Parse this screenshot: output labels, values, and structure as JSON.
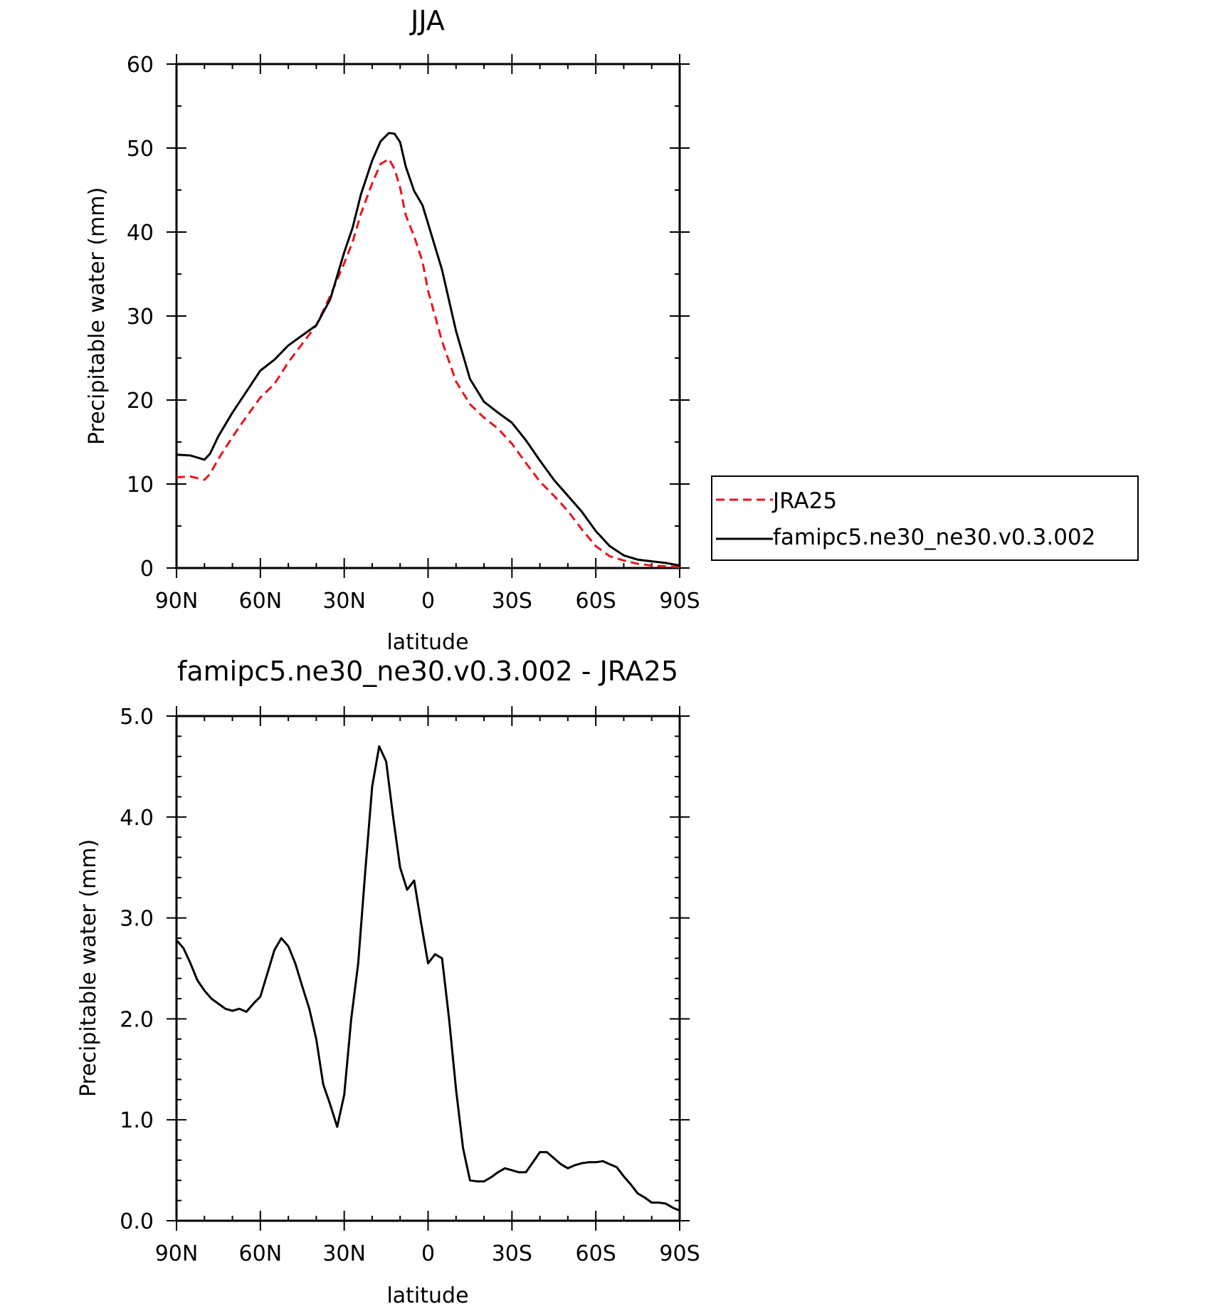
{
  "chart_data": [
    {
      "type": "line",
      "title": "JJA",
      "xlabel": "latitude",
      "ylabel": "Precipitable water (mm)",
      "xlim": [
        90,
        -90
      ],
      "ylim": [
        0,
        60
      ],
      "x_ticks": [
        90,
        60,
        30,
        0,
        -30,
        -60,
        -90
      ],
      "x_tick_labels": [
        "90N",
        "60N",
        "30N",
        "0",
        "30S",
        "60S",
        "90S"
      ],
      "y_ticks": [
        0,
        10,
        20,
        30,
        40,
        50,
        60
      ],
      "y_tick_labels": [
        "0",
        "10",
        "20",
        "30",
        "40",
        "50",
        "60"
      ],
      "legend": "right",
      "series": [
        {
          "name": "JRA25",
          "color": "#e8141c",
          "dash": "dashed",
          "x": [
            90,
            85,
            80,
            78,
            75,
            70,
            65,
            60,
            55,
            50,
            45,
            40,
            35,
            30,
            27,
            24,
            20,
            17,
            14,
            12,
            10,
            8,
            5,
            2,
            0,
            -5,
            -10,
            -15,
            -20,
            -25,
            -30,
            -35,
            -40,
            -45,
            -50,
            -55,
            -60,
            -65,
            -70,
            -75,
            -80,
            -85,
            -90
          ],
          "values": [
            10.8,
            10.9,
            10.5,
            11.2,
            13.0,
            15.6,
            18.0,
            20.3,
            21.9,
            24.5,
            26.7,
            28.9,
            32.4,
            36.3,
            38.8,
            42.2,
            45.8,
            48.1,
            48.7,
            47.5,
            45.3,
            42.0,
            39.5,
            36.5,
            33.0,
            27.0,
            22.2,
            19.5,
            17.9,
            16.6,
            14.8,
            12.5,
            10.3,
            8.6,
            6.8,
            4.6,
            2.6,
            1.4,
            0.9,
            0.5,
            0.3,
            0.2,
            0.1
          ]
        },
        {
          "name": "famipc5.ne30_ne30.v0.3.002",
          "color": "#000000",
          "dash": "solid",
          "x": [
            90,
            85,
            80,
            78,
            75,
            70,
            65,
            60,
            55,
            50,
            45,
            40,
            35,
            30,
            27,
            24,
            20,
            17,
            14,
            12,
            10,
            8,
            5,
            2,
            0,
            -5,
            -10,
            -15,
            -20,
            -25,
            -30,
            -35,
            -40,
            -45,
            -50,
            -55,
            -60,
            -65,
            -70,
            -75,
            -80,
            -85,
            -90
          ],
          "values": [
            13.5,
            13.4,
            12.9,
            13.6,
            15.7,
            18.5,
            21.0,
            23.5,
            24.8,
            26.5,
            27.7,
            28.9,
            32.0,
            37.6,
            40.5,
            44.5,
            48.5,
            50.8,
            51.8,
            51.7,
            50.7,
            47.8,
            44.9,
            43.2,
            41.0,
            35.5,
            28.2,
            22.5,
            19.8,
            18.5,
            17.3,
            15.2,
            12.8,
            10.5,
            8.6,
            6.7,
            4.4,
            2.6,
            1.5,
            1.0,
            0.8,
            0.6,
            0.3
          ]
        }
      ]
    },
    {
      "type": "line",
      "title": "famipc5.ne30_ne30.v0.3.002 - JRA25",
      "xlabel": "latitude",
      "ylabel": "Precipitable water (mm)",
      "xlim": [
        90,
        -90
      ],
      "ylim": [
        0,
        5
      ],
      "x_ticks": [
        90,
        60,
        30,
        0,
        -30,
        -60,
        -90
      ],
      "x_tick_labels": [
        "90N",
        "60N",
        "30N",
        "0",
        "30S",
        "60S",
        "90S"
      ],
      "y_ticks": [
        0,
        1,
        2,
        3,
        4,
        5
      ],
      "y_tick_labels": [
        "0.0",
        "1.0",
        "2.0",
        "3.0",
        "4.0",
        "5.0"
      ],
      "series": [
        {
          "color": "#000000",
          "dash": "solid",
          "x": [
            90,
            87.5,
            85,
            82.5,
            80,
            77.5,
            75,
            72.5,
            70,
            67.5,
            65,
            62.5,
            60,
            57.5,
            55,
            52.5,
            50,
            47.5,
            45,
            42.5,
            40,
            37.5,
            35,
            32.5,
            30,
            27.5,
            25,
            22.5,
            20,
            17.5,
            15,
            12.5,
            10,
            7.5,
            5,
            2.5,
            0,
            -2.5,
            -5,
            -7.5,
            -10,
            -12.5,
            -15,
            -17.5,
            -20,
            -22.5,
            -25,
            -27.5,
            -30,
            -32.5,
            -35,
            -37.5,
            -40,
            -42.5,
            -45,
            -47.5,
            -50,
            -52.5,
            -55,
            -57.5,
            -60,
            -62.5,
            -65,
            -67.5,
            -70,
            -72.5,
            -75,
            -77.5,
            -80,
            -82.5,
            -85,
            -87.5,
            -90
          ],
          "values": [
            2.78,
            2.7,
            2.55,
            2.38,
            2.28,
            2.2,
            2.15,
            2.1,
            2.08,
            2.1,
            2.07,
            2.15,
            2.22,
            2.45,
            2.68,
            2.8,
            2.72,
            2.55,
            2.32,
            2.1,
            1.8,
            1.35,
            1.15,
            0.93,
            1.25,
            2.0,
            2.55,
            3.45,
            4.3,
            4.7,
            4.55,
            4.0,
            3.5,
            3.28,
            3.37,
            2.95,
            2.55,
            2.64,
            2.6,
            2.0,
            1.3,
            0.72,
            0.4,
            0.39,
            0.39,
            0.43,
            0.48,
            0.52,
            0.5,
            0.48,
            0.48,
            0.58,
            0.68,
            0.68,
            0.62,
            0.56,
            0.52,
            0.55,
            0.57,
            0.58,
            0.58,
            0.59,
            0.56,
            0.53,
            0.44,
            0.36,
            0.27,
            0.23,
            0.18,
            0.18,
            0.17,
            0.13,
            0.1
          ]
        }
      ]
    }
  ]
}
